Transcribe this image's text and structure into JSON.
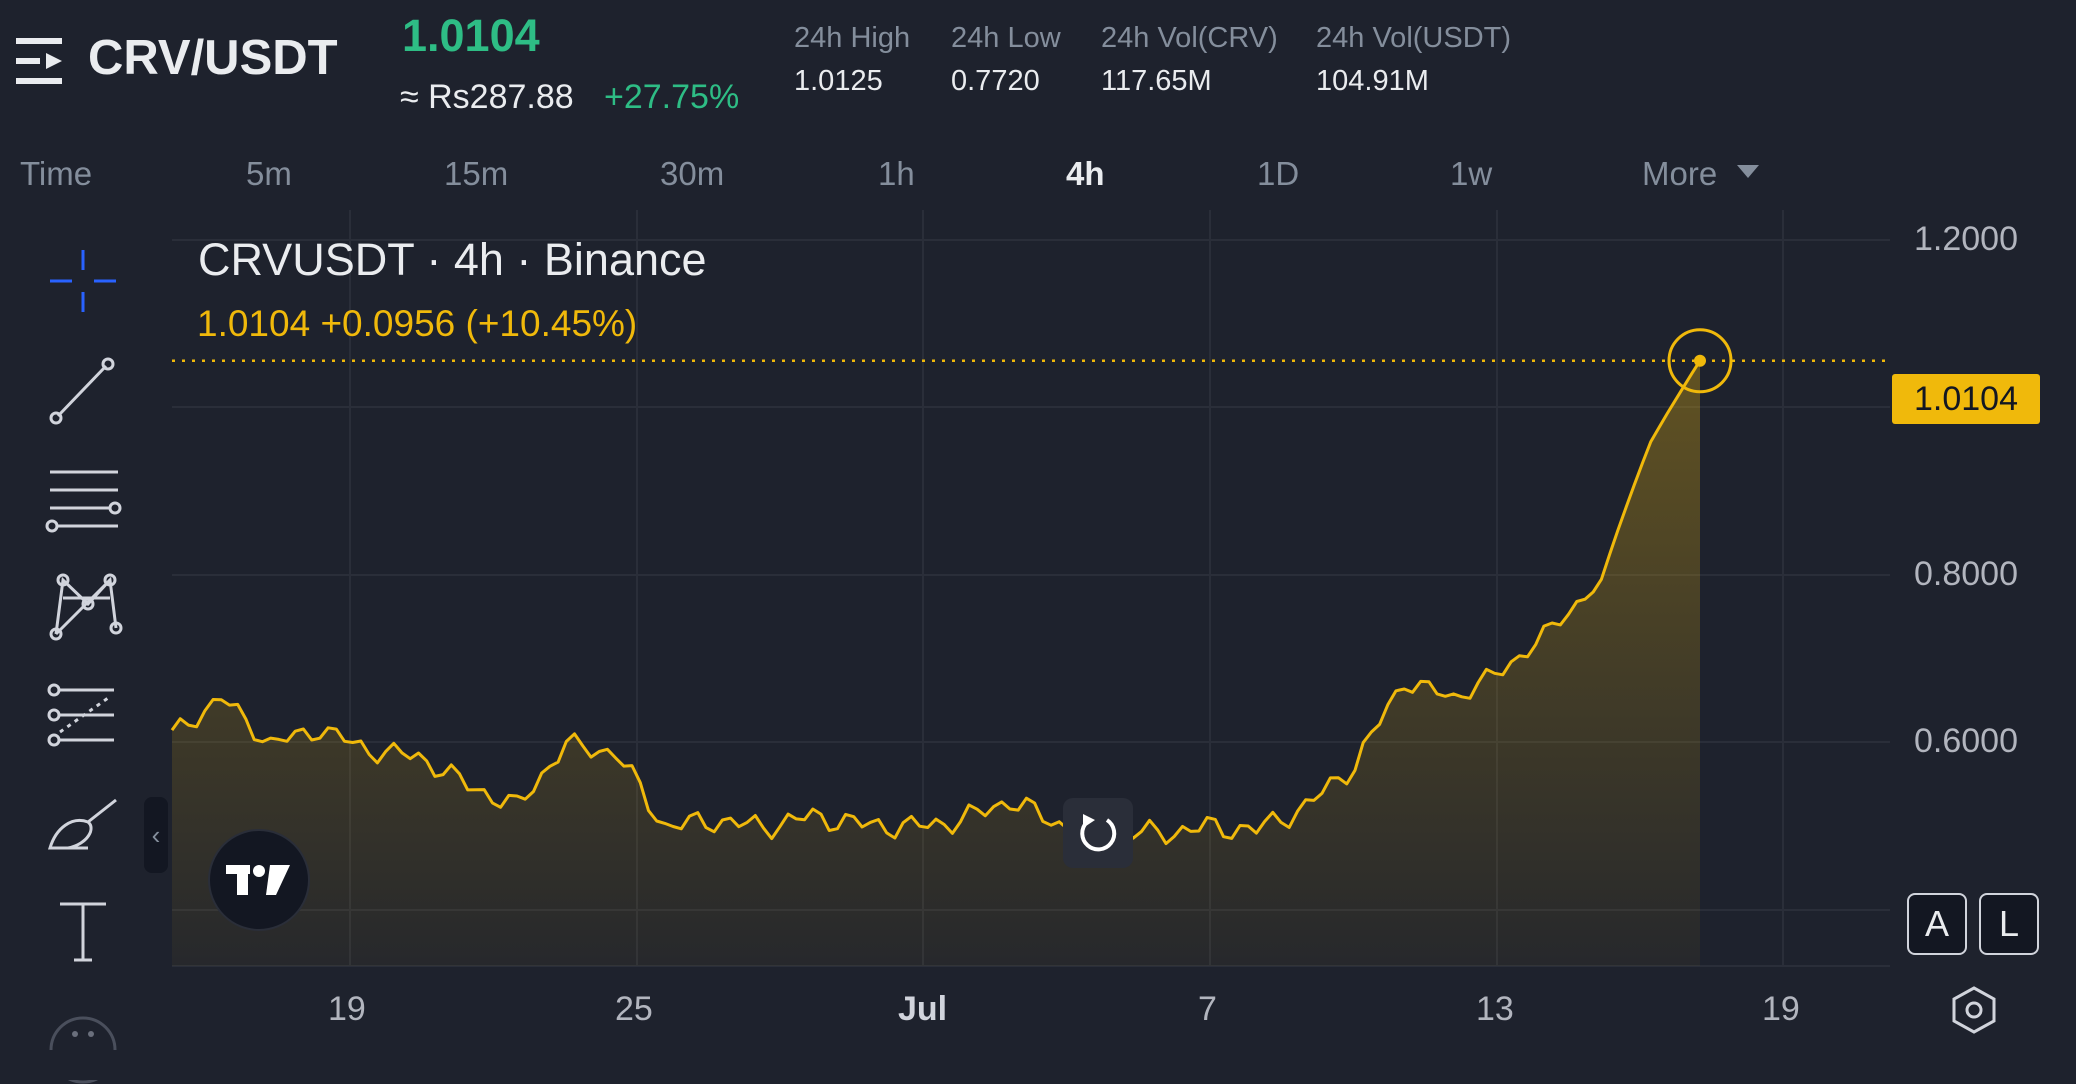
{
  "header": {
    "pair": "CRV/USDT",
    "last_price": "1.0104",
    "fiat_price": "≈ Rs287.88",
    "change_pct": "+27.75%",
    "stats": [
      {
        "label": "24h High",
        "value": "1.0125"
      },
      {
        "label": "24h Low",
        "value": "0.7720"
      },
      {
        "label": "24h Vol(CRV)",
        "value": "117.65M"
      },
      {
        "label": "24h Vol(USDT)",
        "value": "104.91M"
      }
    ]
  },
  "intervals": {
    "items": [
      "Time",
      "5m",
      "15m",
      "30m",
      "1h",
      "4h",
      "1D",
      "1w",
      "More"
    ],
    "active": "4h"
  },
  "toolbar": {
    "tools": [
      "crosshair-icon",
      "trend-line-icon",
      "horizontal-lines-icon",
      "pattern-icon",
      "forecast-icon",
      "brush-icon",
      "text-icon",
      "more-tools-icon"
    ]
  },
  "chart": {
    "title": "CRVUSDT · 4h · Binance",
    "quote": "1.0104  +0.0956 (+10.45%)",
    "price_badge": "1.0104",
    "y_ticks": [
      "1.2000",
      "0.8000",
      "0.6000"
    ],
    "x_ticks": [
      "19",
      "25",
      "Jul",
      "7",
      "13",
      "19"
    ],
    "scale_buttons": [
      "A",
      "L"
    ],
    "line_color": "#f0b90b",
    "accent_blue": "#2962ff"
  },
  "chart_data": {
    "type": "area",
    "symbol": "CRVUSDT",
    "interval": "4h",
    "exchange": "Binance",
    "x": [
      "Jun 16",
      "Jun 17",
      "Jun 18",
      "Jun 19",
      "Jun 20",
      "Jun 21",
      "Jun 22",
      "Jun 23",
      "Jun 24",
      "Jun 25",
      "Jun 26",
      "Jun 27",
      "Jun 28",
      "Jun 29",
      "Jun 30",
      "Jul 1",
      "Jul 2",
      "Jul 3",
      "Jul 4",
      "Jul 5",
      "Jul 6",
      "Jul 7",
      "Jul 8",
      "Jul 9",
      "Jul 10",
      "Jul 11",
      "Jul 12",
      "Jul 13",
      "Jul 14",
      "Jul 15",
      "Jul 16",
      "Jul 17"
    ],
    "values": [
      0.593,
      0.625,
      0.585,
      0.598,
      0.58,
      0.575,
      0.552,
      0.535,
      0.585,
      0.578,
      0.52,
      0.525,
      0.52,
      0.528,
      0.522,
      0.52,
      0.525,
      0.54,
      0.522,
      0.518,
      0.515,
      0.52,
      0.518,
      0.535,
      0.568,
      0.64,
      0.625,
      0.65,
      0.69,
      0.74,
      0.9,
      1.0104
    ],
    "last_price": 1.0104,
    "y_ticks": [
      1.2,
      0.8,
      0.6
    ],
    "x_ticks": [
      "19",
      "25",
      "Jul",
      "7",
      "13",
      "19"
    ],
    "grid": true,
    "legend": "none"
  }
}
